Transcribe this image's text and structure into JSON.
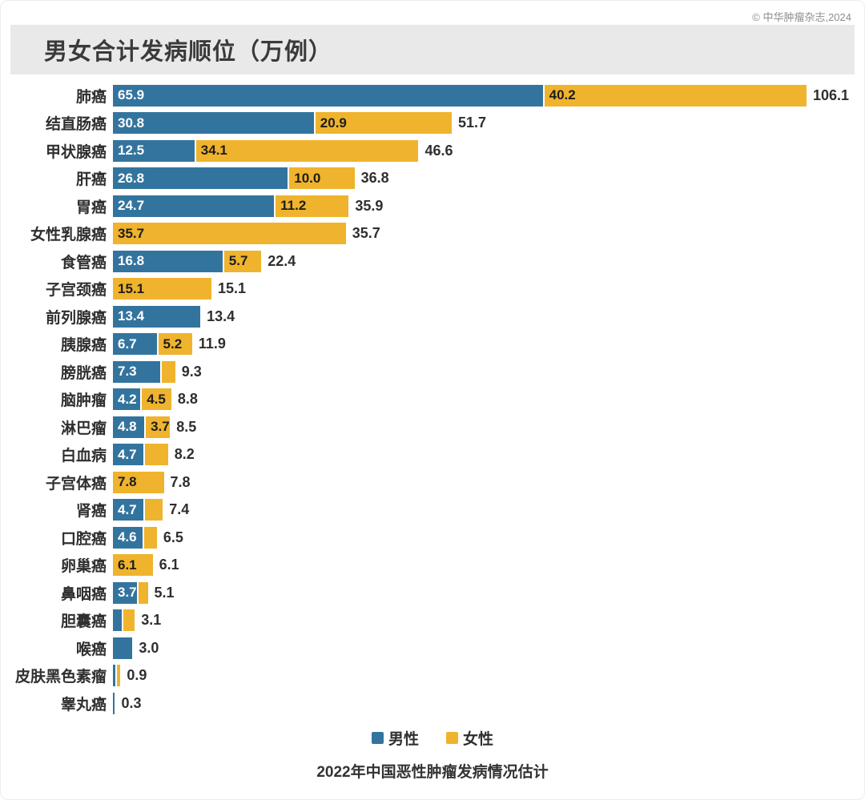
{
  "copyright": "© 中华肿瘤杂志,2024",
  "title": "男女合计发病顺位（万例）",
  "legend": {
    "male": "男性",
    "female": "女性"
  },
  "caption": "2022年中国恶性肿瘤发病情况估计",
  "colors": {
    "male": "#33749E",
    "female": "#EFB32D"
  },
  "chart_data": {
    "type": "bar",
    "orientation": "horizontal",
    "stacked": true,
    "unit": "万例",
    "title": "男女合计发病顺位（万例）",
    "subtitle": "2022年中国恶性肿瘤发病情况估计",
    "legend_position": "bottom",
    "series_names": [
      "男性",
      "女性"
    ],
    "xlim": [
      0,
      106.1
    ],
    "grid": false,
    "rows": [
      {
        "label": "肺癌",
        "male": 65.9,
        "female": 40.2,
        "total": 106.1,
        "male_label": "65.9",
        "female_label": "40.2",
        "total_label": "106.1"
      },
      {
        "label": "结直肠癌",
        "male": 30.8,
        "female": 20.9,
        "total": 51.7,
        "male_label": "30.8",
        "female_label": "20.9",
        "total_label": "51.7"
      },
      {
        "label": "甲状腺癌",
        "male": 12.5,
        "female": 34.1,
        "total": 46.6,
        "male_label": "12.5",
        "female_label": "34.1",
        "total_label": "46.6"
      },
      {
        "label": "肝癌",
        "male": 26.8,
        "female": 10.0,
        "total": 36.8,
        "male_label": "26.8",
        "female_label": "10.0",
        "total_label": "36.8"
      },
      {
        "label": "胃癌",
        "male": 24.7,
        "female": 11.2,
        "total": 35.9,
        "male_label": "24.7",
        "female_label": "11.2",
        "total_label": "35.9"
      },
      {
        "label": "女性乳腺癌",
        "male": 0,
        "female": 35.7,
        "total": 35.7,
        "male_label": null,
        "female_label": "35.7",
        "total_label": "35.7"
      },
      {
        "label": "食管癌",
        "male": 16.8,
        "female": 5.7,
        "total": 22.4,
        "male_label": "16.8",
        "female_label": "5.7",
        "total_label": "22.4"
      },
      {
        "label": "子宫颈癌",
        "male": 0,
        "female": 15.1,
        "total": 15.1,
        "male_label": null,
        "female_label": "15.1",
        "total_label": "15.1"
      },
      {
        "label": "前列腺癌",
        "male": 13.4,
        "female": 0,
        "total": 13.4,
        "male_label": "13.4",
        "female_label": null,
        "total_label": "13.4"
      },
      {
        "label": "胰腺癌",
        "male": 6.7,
        "female": 5.2,
        "total": 11.9,
        "male_label": "6.7",
        "female_label": "5.2",
        "total_label": "11.9"
      },
      {
        "label": "膀胱癌",
        "male": 7.3,
        "female": 2.0,
        "total": 9.3,
        "male_label": "7.3",
        "female_label": null,
        "total_label": "9.3"
      },
      {
        "label": "脑肿瘤",
        "male": 4.2,
        "female": 4.5,
        "total": 8.8,
        "male_label": "4.2",
        "female_label": "4.5",
        "total_label": "8.8"
      },
      {
        "label": "淋巴瘤",
        "male": 4.8,
        "female": 3.7,
        "total": 8.5,
        "male_label": "4.8",
        "female_label": "3.7",
        "total_label": "8.5"
      },
      {
        "label": "白血病",
        "male": 4.7,
        "female": 3.5,
        "total": 8.2,
        "male_label": "4.7",
        "female_label": null,
        "total_label": "8.2"
      },
      {
        "label": "子宫体癌",
        "male": 0,
        "female": 7.8,
        "total": 7.8,
        "male_label": null,
        "female_label": "7.8",
        "total_label": "7.8"
      },
      {
        "label": "肾癌",
        "male": 4.7,
        "female": 2.7,
        "total": 7.4,
        "male_label": "4.7",
        "female_label": null,
        "total_label": "7.4"
      },
      {
        "label": "口腔癌",
        "male": 4.6,
        "female": 1.9,
        "total": 6.5,
        "male_label": "4.6",
        "female_label": null,
        "total_label": "6.5"
      },
      {
        "label": "卵巢癌",
        "male": 0,
        "female": 6.1,
        "total": 6.1,
        "male_label": null,
        "female_label": "6.1",
        "total_label": "6.1"
      },
      {
        "label": "鼻咽癌",
        "male": 3.7,
        "female": 1.4,
        "total": 5.1,
        "male_label": "3.7",
        "female_label": null,
        "total_label": "5.1"
      },
      {
        "label": "胆囊癌",
        "male": 1.4,
        "female": 1.7,
        "total": 3.1,
        "male_label": null,
        "female_label": null,
        "total_label": "3.1"
      },
      {
        "label": "喉癌",
        "male": 3.0,
        "female": 0,
        "total": 3.0,
        "male_label": null,
        "female_label": null,
        "total_label": "3.0"
      },
      {
        "label": "皮肤黑色素瘤",
        "male": 0.4,
        "female": 0.5,
        "total": 0.9,
        "male_label": null,
        "female_label": null,
        "total_label": "0.9"
      },
      {
        "label": "睾丸癌",
        "male": 0.3,
        "female": 0,
        "total": 0.3,
        "male_label": null,
        "female_label": null,
        "total_label": "0.3"
      }
    ]
  }
}
